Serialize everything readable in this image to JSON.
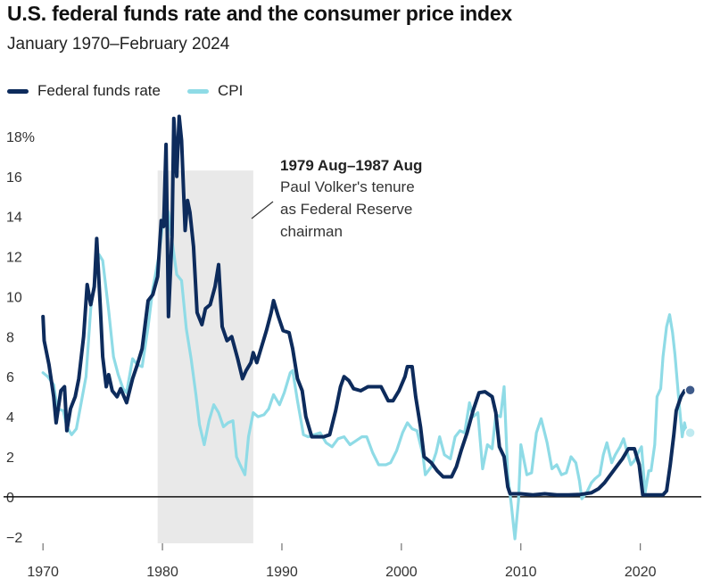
{
  "title": "U.S. federal funds rate and the consumer price index",
  "subtitle": "January 1970–February 2024",
  "legend": [
    {
      "name": "Federal funds rate",
      "color": "#0d2b5c"
    },
    {
      "name": "CPI",
      "color": "#8fdbe6"
    }
  ],
  "annotation": {
    "title": "1979 Aug–1987 Aug",
    "lines": [
      "Paul Volker's tenure",
      "as Federal Reserve",
      "chairman"
    ]
  },
  "chart_data": {
    "type": "line",
    "title": "U.S. federal funds rate and the consumer price index",
    "xlabel": "",
    "ylabel": "",
    "xlim": [
      1967.3,
      2025.4
    ],
    "ylim": [
      -2.5,
      18.8
    ],
    "yticks": [
      -2,
      0,
      2,
      4,
      6,
      8,
      10,
      12,
      14,
      16,
      18
    ],
    "ytick_labels": [
      "−2",
      "0",
      "2",
      "4",
      "6",
      "8",
      "10",
      "12",
      "14",
      "16",
      "18%"
    ],
    "xticks": [
      1970,
      1980,
      1990,
      2000,
      2010,
      2020
    ],
    "xtick_labels": [
      "1970",
      "1980",
      "1990",
      "2000",
      "2010",
      "2020"
    ],
    "shaded_range": [
      1979.6,
      1987.6
    ],
    "series": [
      {
        "name": "Federal funds rate",
        "color": "#0d2b5c",
        "points": [
          [
            1970.0,
            9.0
          ],
          [
            1970.1,
            7.8
          ],
          [
            1970.5,
            6.6
          ],
          [
            1970.9,
            5.0
          ],
          [
            1971.1,
            3.7
          ],
          [
            1971.5,
            5.3
          ],
          [
            1971.8,
            5.5
          ],
          [
            1972.0,
            3.3
          ],
          [
            1972.3,
            4.4
          ],
          [
            1972.7,
            5.0
          ],
          [
            1973.0,
            5.9
          ],
          [
            1973.4,
            8.0
          ],
          [
            1973.7,
            10.6
          ],
          [
            1974.0,
            9.6
          ],
          [
            1974.3,
            10.5
          ],
          [
            1974.5,
            12.9
          ],
          [
            1974.8,
            9.5
          ],
          [
            1975.0,
            7.0
          ],
          [
            1975.3,
            5.5
          ],
          [
            1975.5,
            6.1
          ],
          [
            1975.8,
            5.3
          ],
          [
            1976.2,
            5.0
          ],
          [
            1976.5,
            5.4
          ],
          [
            1977.0,
            4.7
          ],
          [
            1977.5,
            5.9
          ],
          [
            1977.9,
            6.6
          ],
          [
            1978.3,
            7.4
          ],
          [
            1978.8,
            9.8
          ],
          [
            1979.2,
            10.1
          ],
          [
            1979.6,
            11.0
          ],
          [
            1979.9,
            13.8
          ],
          [
            1980.1,
            13.5
          ],
          [
            1980.3,
            17.6
          ],
          [
            1980.5,
            9.0
          ],
          [
            1980.8,
            13.0
          ],
          [
            1980.95,
            18.9
          ],
          [
            1981.2,
            16.0
          ],
          [
            1981.4,
            19.0
          ],
          [
            1981.6,
            17.8
          ],
          [
            1981.9,
            13.3
          ],
          [
            1982.1,
            14.8
          ],
          [
            1982.3,
            14.2
          ],
          [
            1982.6,
            12.5
          ],
          [
            1982.9,
            9.2
          ],
          [
            1983.3,
            8.6
          ],
          [
            1983.6,
            9.4
          ],
          [
            1984.0,
            9.6
          ],
          [
            1984.4,
            10.5
          ],
          [
            1984.7,
            11.6
          ],
          [
            1985.0,
            8.5
          ],
          [
            1985.4,
            7.8
          ],
          [
            1985.8,
            8.0
          ],
          [
            1986.3,
            6.9
          ],
          [
            1986.7,
            5.9
          ],
          [
            1987.0,
            6.3
          ],
          [
            1987.4,
            6.7
          ],
          [
            1987.6,
            7.2
          ],
          [
            1987.9,
            6.7
          ],
          [
            1988.3,
            7.5
          ],
          [
            1988.7,
            8.3
          ],
          [
            1989.1,
            9.2
          ],
          [
            1989.3,
            9.8
          ],
          [
            1989.7,
            9.0
          ],
          [
            1990.1,
            8.3
          ],
          [
            1990.6,
            8.2
          ],
          [
            1990.9,
            7.4
          ],
          [
            1991.3,
            5.9
          ],
          [
            1991.7,
            5.3
          ],
          [
            1992.0,
            4.0
          ],
          [
            1992.5,
            3.0
          ],
          [
            1993.0,
            3.0
          ],
          [
            1993.5,
            3.0
          ],
          [
            1994.0,
            3.1
          ],
          [
            1994.5,
            4.3
          ],
          [
            1994.9,
            5.5
          ],
          [
            1995.2,
            6.0
          ],
          [
            1995.6,
            5.8
          ],
          [
            1996.0,
            5.4
          ],
          [
            1996.6,
            5.3
          ],
          [
            1997.2,
            5.5
          ],
          [
            1997.8,
            5.5
          ],
          [
            1998.3,
            5.5
          ],
          [
            1998.9,
            4.8
          ],
          [
            1999.3,
            4.8
          ],
          [
            1999.8,
            5.3
          ],
          [
            2000.3,
            6.0
          ],
          [
            2000.5,
            6.5
          ],
          [
            2000.9,
            6.5
          ],
          [
            2001.2,
            5.0
          ],
          [
            2001.6,
            3.5
          ],
          [
            2001.9,
            2.0
          ],
          [
            2002.5,
            1.7
          ],
          [
            2003.0,
            1.3
          ],
          [
            2003.5,
            1.0
          ],
          [
            2004.2,
            1.0
          ],
          [
            2004.6,
            1.5
          ],
          [
            2005.0,
            2.3
          ],
          [
            2005.5,
            3.2
          ],
          [
            2006.0,
            4.3
          ],
          [
            2006.5,
            5.2
          ],
          [
            2007.0,
            5.25
          ],
          [
            2007.6,
            5.0
          ],
          [
            2007.9,
            4.2
          ],
          [
            2008.2,
            2.5
          ],
          [
            2008.6,
            2.0
          ],
          [
            2008.9,
            0.5
          ],
          [
            2009.1,
            0.15
          ],
          [
            2010.0,
            0.15
          ],
          [
            2011.0,
            0.1
          ],
          [
            2012.0,
            0.15
          ],
          [
            2013.0,
            0.1
          ],
          [
            2014.0,
            0.1
          ],
          [
            2015.0,
            0.12
          ],
          [
            2015.9,
            0.2
          ],
          [
            2016.5,
            0.4
          ],
          [
            2017.0,
            0.7
          ],
          [
            2017.5,
            1.1
          ],
          [
            2018.0,
            1.5
          ],
          [
            2018.5,
            1.9
          ],
          [
            2019.0,
            2.4
          ],
          [
            2019.5,
            2.4
          ],
          [
            2019.9,
            1.6
          ],
          [
            2020.2,
            0.1
          ],
          [
            2021.0,
            0.1
          ],
          [
            2021.9,
            0.1
          ],
          [
            2022.2,
            0.3
          ],
          [
            2022.5,
            1.6
          ],
          [
            2022.8,
            3.1
          ],
          [
            2023.0,
            4.3
          ],
          [
            2023.4,
            5.0
          ],
          [
            2023.7,
            5.3
          ],
          [
            2024.1,
            5.33
          ]
        ]
      },
      {
        "name": "CPI",
        "color": "#8fdbe6",
        "points": [
          [
            1970.0,
            6.2
          ],
          [
            1970.4,
            6.0
          ],
          [
            1970.9,
            5.6
          ],
          [
            1971.2,
            4.4
          ],
          [
            1971.7,
            4.3
          ],
          [
            1972.0,
            3.5
          ],
          [
            1972.4,
            3.1
          ],
          [
            1972.8,
            3.4
          ],
          [
            1973.2,
            4.7
          ],
          [
            1973.6,
            6.0
          ],
          [
            1974.0,
            9.4
          ],
          [
            1974.3,
            10.7
          ],
          [
            1974.7,
            12.1
          ],
          [
            1975.0,
            11.8
          ],
          [
            1975.5,
            9.3
          ],
          [
            1975.9,
            7.0
          ],
          [
            1976.3,
            6.1
          ],
          [
            1976.7,
            5.4
          ],
          [
            1977.0,
            5.2
          ],
          [
            1977.5,
            6.9
          ],
          [
            1977.9,
            6.6
          ],
          [
            1978.3,
            6.5
          ],
          [
            1978.8,
            8.5
          ],
          [
            1979.2,
            10.4
          ],
          [
            1979.7,
            12.0
          ],
          [
            1980.2,
            14.6
          ],
          [
            1980.5,
            14.2
          ],
          [
            1980.8,
            12.8
          ],
          [
            1981.2,
            11.1
          ],
          [
            1981.6,
            10.8
          ],
          [
            1982.0,
            8.4
          ],
          [
            1982.4,
            6.9
          ],
          [
            1982.8,
            5.1
          ],
          [
            1983.1,
            3.6
          ],
          [
            1983.5,
            2.6
          ],
          [
            1983.9,
            3.8
          ],
          [
            1984.3,
            4.6
          ],
          [
            1984.7,
            4.2
          ],
          [
            1985.1,
            3.5
          ],
          [
            1985.5,
            3.7
          ],
          [
            1985.9,
            3.8
          ],
          [
            1986.2,
            2.0
          ],
          [
            1986.5,
            1.6
          ],
          [
            1986.9,
            1.1
          ],
          [
            1987.2,
            3.0
          ],
          [
            1987.6,
            4.2
          ],
          [
            1988.0,
            4.0
          ],
          [
            1988.5,
            4.1
          ],
          [
            1988.9,
            4.4
          ],
          [
            1989.3,
            5.1
          ],
          [
            1989.8,
            4.6
          ],
          [
            1990.2,
            5.2
          ],
          [
            1990.7,
            6.2
          ],
          [
            1990.9,
            6.3
          ],
          [
            1991.3,
            4.8
          ],
          [
            1991.8,
            3.1
          ],
          [
            1992.2,
            3.0
          ],
          [
            1992.7,
            3.1
          ],
          [
            1993.2,
            3.2
          ],
          [
            1993.7,
            2.7
          ],
          [
            1994.2,
            2.5
          ],
          [
            1994.7,
            2.9
          ],
          [
            1995.2,
            3.0
          ],
          [
            1995.7,
            2.6
          ],
          [
            1996.2,
            2.8
          ],
          [
            1996.7,
            3.0
          ],
          [
            1997.1,
            3.0
          ],
          [
            1997.6,
            2.2
          ],
          [
            1998.1,
            1.6
          ],
          [
            1998.7,
            1.6
          ],
          [
            1999.1,
            1.7
          ],
          [
            1999.6,
            2.3
          ],
          [
            2000.1,
            3.2
          ],
          [
            2000.5,
            3.7
          ],
          [
            2000.9,
            3.4
          ],
          [
            2001.3,
            3.3
          ],
          [
            2001.8,
            2.1
          ],
          [
            2002.0,
            1.1
          ],
          [
            2002.5,
            1.5
          ],
          [
            2002.9,
            2.2
          ],
          [
            2003.2,
            3.0
          ],
          [
            2003.6,
            2.1
          ],
          [
            2004.1,
            1.9
          ],
          [
            2004.5,
            3.0
          ],
          [
            2004.9,
            3.3
          ],
          [
            2005.3,
            3.2
          ],
          [
            2005.7,
            4.7
          ],
          [
            2006.0,
            4.0
          ],
          [
            2006.4,
            4.2
          ],
          [
            2006.8,
            1.4
          ],
          [
            2007.2,
            2.6
          ],
          [
            2007.6,
            2.4
          ],
          [
            2007.9,
            4.1
          ],
          [
            2008.3,
            4.0
          ],
          [
            2008.6,
            5.5
          ],
          [
            2008.9,
            1.1
          ],
          [
            2009.2,
            -0.4
          ],
          [
            2009.5,
            -2.1
          ],
          [
            2009.8,
            -0.2
          ],
          [
            2010.0,
            2.6
          ],
          [
            2010.5,
            1.1
          ],
          [
            2010.9,
            1.2
          ],
          [
            2011.3,
            3.2
          ],
          [
            2011.7,
            3.9
          ],
          [
            2012.2,
            2.7
          ],
          [
            2012.6,
            1.4
          ],
          [
            2013.0,
            1.6
          ],
          [
            2013.4,
            1.1
          ],
          [
            2013.8,
            1.2
          ],
          [
            2014.2,
            2.0
          ],
          [
            2014.6,
            1.7
          ],
          [
            2014.9,
            0.8
          ],
          [
            2015.1,
            -0.1
          ],
          [
            2015.5,
            0.2
          ],
          [
            2015.9,
            0.7
          ],
          [
            2016.2,
            0.9
          ],
          [
            2016.6,
            1.1
          ],
          [
            2016.9,
            2.1
          ],
          [
            2017.2,
            2.7
          ],
          [
            2017.6,
            1.7
          ],
          [
            2017.9,
            2.1
          ],
          [
            2018.3,
            2.5
          ],
          [
            2018.6,
            2.9
          ],
          [
            2018.9,
            2.2
          ],
          [
            2019.2,
            1.6
          ],
          [
            2019.5,
            1.8
          ],
          [
            2019.9,
            2.3
          ],
          [
            2020.1,
            2.5
          ],
          [
            2020.4,
            0.2
          ],
          [
            2020.7,
            1.3
          ],
          [
            2020.9,
            1.3
          ],
          [
            2021.2,
            2.6
          ],
          [
            2021.4,
            5.0
          ],
          [
            2021.7,
            5.4
          ],
          [
            2021.9,
            7.0
          ],
          [
            2022.2,
            8.5
          ],
          [
            2022.45,
            9.1
          ],
          [
            2022.7,
            8.2
          ],
          [
            2022.9,
            7.1
          ],
          [
            2023.2,
            5.0
          ],
          [
            2023.5,
            3.0
          ],
          [
            2023.7,
            3.7
          ],
          [
            2023.9,
            3.1
          ],
          [
            2024.1,
            3.2
          ]
        ]
      }
    ]
  }
}
